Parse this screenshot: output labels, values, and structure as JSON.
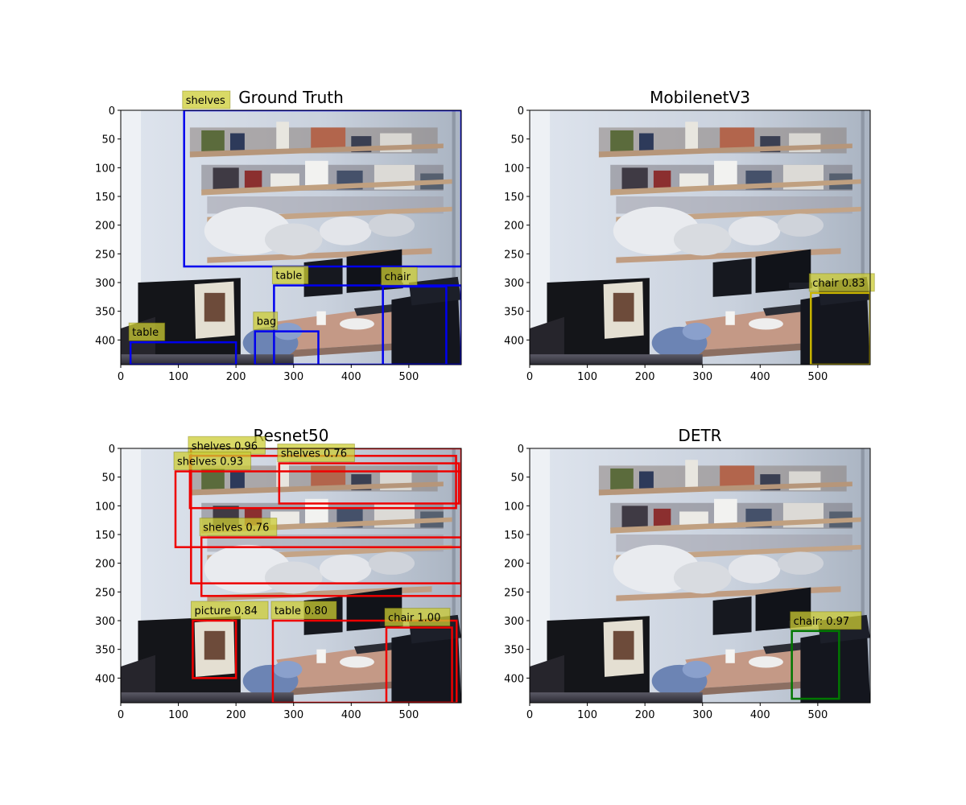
{
  "chart_data": [
    {
      "type": "image-detection",
      "title": "Ground Truth",
      "xlim": [
        0,
        591
      ],
      "ylim": [
        443,
        0
      ],
      "xticks": [
        0,
        100,
        200,
        300,
        400,
        500
      ],
      "yticks": [
        0,
        50,
        100,
        150,
        200,
        250,
        300,
        350,
        400
      ],
      "box_color": "#0000ee",
      "label_bg": "#cccc33",
      "boxes": [
        {
          "label": "shelves",
          "x0": 110,
          "y0": 0,
          "x1": 591,
          "y1": 272
        },
        {
          "label": "table",
          "x0": 266,
          "y0": 305,
          "x1": 591,
          "y1": 443
        },
        {
          "label": "chair",
          "x0": 455,
          "y0": 307,
          "x1": 565,
          "y1": 443
        },
        {
          "label": "table",
          "x0": 17,
          "y0": 404,
          "x1": 200,
          "y1": 443
        },
        {
          "label": "bag",
          "x0": 233,
          "y0": 385,
          "x1": 343,
          "y1": 443
        }
      ]
    },
    {
      "type": "image-detection",
      "title": "MobilenetV3",
      "xlim": [
        0,
        591
      ],
      "ylim": [
        443,
        0
      ],
      "xticks": [
        0,
        100,
        200,
        300,
        400,
        500
      ],
      "yticks": [
        0,
        50,
        100,
        150,
        200,
        250,
        300,
        350,
        400
      ],
      "box_color": "#c8b400",
      "label_bg": "#cccc33",
      "boxes": [
        {
          "label": "chair 0.83",
          "x0": 488,
          "y0": 318,
          "x1": 591,
          "y1": 443
        }
      ]
    },
    {
      "type": "image-detection",
      "title": "Resnet50",
      "xlim": [
        0,
        591
      ],
      "ylim": [
        443,
        0
      ],
      "xticks": [
        0,
        100,
        200,
        300,
        400,
        500
      ],
      "yticks": [
        0,
        50,
        100,
        150,
        200,
        250,
        300,
        350,
        400
      ],
      "box_color": "#ee0000",
      "label_bg": "#cccc33",
      "boxes": [
        {
          "label": "shelves 0.96",
          "x0": 120,
          "y0": 13,
          "x1": 582,
          "y1": 104
        },
        {
          "label": "shelves 0.76",
          "x0": 275,
          "y0": 26,
          "x1": 587,
          "y1": 96
        },
        {
          "label": "shelves 0.93",
          "x0": 95,
          "y0": 40,
          "x1": 591,
          "y1": 172
        },
        {
          "label": "shelves 0.76",
          "x0": 140,
          "y0": 155,
          "x1": 591,
          "y1": 257
        },
        {
          "label": "",
          "x0": 122,
          "y0": 0,
          "x1": 591,
          "y1": 235
        },
        {
          "label": "picture 0.84",
          "x0": 125,
          "y0": 300,
          "x1": 200,
          "y1": 400
        },
        {
          "label": "table 0.80",
          "x0": 264,
          "y0": 300,
          "x1": 583,
          "y1": 443
        },
        {
          "label": "chair 1.00",
          "x0": 461,
          "y0": 312,
          "x1": 575,
          "y1": 443
        }
      ]
    },
    {
      "type": "image-detection",
      "title": "DETR",
      "xlim": [
        0,
        591
      ],
      "ylim": [
        443,
        0
      ],
      "xticks": [
        0,
        100,
        200,
        300,
        400,
        500
      ],
      "yticks": [
        0,
        50,
        100,
        150,
        200,
        250,
        300,
        350,
        400
      ],
      "box_color": "#007700",
      "label_bg": "#cccc33",
      "boxes": [
        {
          "label": "chair: 0.97",
          "x0": 455,
          "y0": 318,
          "x1": 537,
          "y1": 436
        }
      ]
    }
  ]
}
